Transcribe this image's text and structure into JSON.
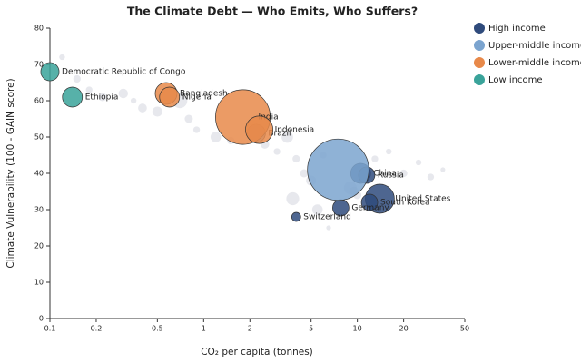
{
  "chart_data": {
    "type": "scatter",
    "title": "The Climate Debt — Who Emits, Who Suffers?",
    "x_label": "CO₂ per capita (tonnes)",
    "y_label": "Climate Vulnerability (100 - GAIN score)",
    "log_x": true,
    "xlim": [
      0.1,
      50
    ],
    "ylim": [
      0,
      80
    ],
    "xticks": [
      0.1,
      0.2,
      0.5,
      1,
      2,
      5,
      10,
      20,
      50
    ],
    "yticks": [
      0,
      10,
      20,
      30,
      40,
      50,
      60,
      70,
      80
    ],
    "background": {
      "color": "#c9ccd6",
      "x": [
        0.12,
        0.15,
        0.18,
        0.22,
        0.3,
        0.35,
        0.4,
        0.5,
        0.7,
        0.8,
        0.9,
        1.2,
        1.5,
        2.5,
        3,
        3.5,
        4,
        4.5,
        5,
        6,
        9,
        10,
        13,
        16,
        20,
        25,
        30,
        36,
        5.5,
        3.8,
        6.5,
        9.5
      ],
      "y": [
        72,
        66,
        63,
        61,
        62,
        60,
        58,
        57,
        60,
        55,
        52,
        50,
        49,
        48,
        46,
        50,
        44,
        40,
        38,
        45,
        36,
        34,
        44,
        46,
        40,
        43,
        39,
        41,
        30,
        33,
        25,
        35
      ],
      "sizes": [
        30,
        50,
        40,
        60,
        80,
        30,
        70,
        90,
        200,
        60,
        40,
        100,
        50,
        70,
        40,
        120,
        50,
        60,
        90,
        40,
        150,
        60,
        40,
        30,
        50,
        30,
        40,
        20,
        100,
        150,
        20,
        80
      ]
    },
    "series": [
      {
        "name": "High income",
        "color": "#2f4b7c",
        "x": [
          10.5,
          11.5,
          14,
          12,
          7.8,
          4
        ],
        "y": [
          40,
          39.5,
          33,
          32,
          30.5,
          28
        ],
        "sizes": [
          360,
          240,
          760,
          240,
          240,
          75
        ],
        "labels": [
          "China",
          "Russia",
          "United States",
          "South Korea",
          "Germany",
          "Switzerland"
        ]
      },
      {
        "name": "Upper-middle income",
        "color": "#7ba4cf",
        "x": [
          7.5,
          2.2
        ],
        "y": [
          41,
          51
        ],
        "sizes": [
          3400,
          300
        ],
        "labels": [
          null,
          "Brazil"
        ]
      },
      {
        "name": "Lower-middle income",
        "color": "#e8894a",
        "x": [
          0.57,
          0.6,
          1.8,
          2.3
        ],
        "y": [
          62,
          61,
          55.5,
          52
        ],
        "sizes": [
          430,
          360,
          2700,
          680
        ],
        "labels": [
          "Bangladesh",
          "Nigeria",
          "India",
          "Indonesia"
        ]
      },
      {
        "name": "Low income",
        "color": "#3aa39a",
        "x": [
          0.1,
          0.14
        ],
        "y": [
          68,
          61
        ],
        "sizes": [
          300,
          360
        ],
        "labels": [
          "Democratic Republic of Congo",
          "Ethiopia"
        ]
      }
    ]
  }
}
